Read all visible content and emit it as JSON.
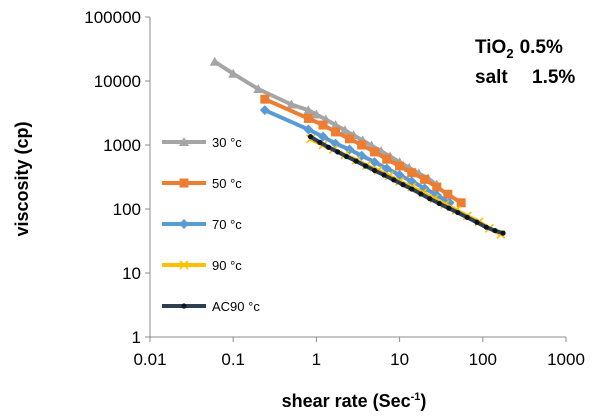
{
  "chart_data": {
    "type": "line",
    "xscale": "log",
    "yscale": "log",
    "xlim": [
      0.01,
      1000
    ],
    "ylim": [
      1,
      100000
    ],
    "xlabel": "shear rate (Sec",
    "xlabel_sup": "-1",
    "xlabel_end": ")",
    "ylabel": "viscosity (cp)",
    "x_ticks": [
      "0.01",
      "0.1",
      "1",
      "10",
      "100",
      "1000"
    ],
    "y_ticks": [
      "1",
      "10",
      "100",
      "1000",
      "10000",
      "100000"
    ],
    "grid": false,
    "legend_position": "left inside plot",
    "annotation": {
      "line1_main": "TiO",
      "line1_sub": "2",
      "line1_value": "0.5%",
      "line2_main": "salt",
      "line2_value": "1.5%"
    },
    "series": [
      {
        "name": "30 °c",
        "color": "#a5a5a5",
        "marker": "triangle",
        "x": [
          0.06,
          0.1,
          0.2,
          0.5,
          0.8,
          1.0,
          1.3,
          1.7,
          2.2,
          2.8,
          3.6,
          4.6,
          6,
          7.7,
          10,
          13,
          17,
          22,
          28
        ],
        "y": [
          20000,
          13000,
          7500,
          4300,
          3500,
          3000,
          2500,
          2050,
          1700,
          1420,
          1180,
          980,
          800,
          660,
          540,
          440,
          360,
          300,
          240
        ]
      },
      {
        "name": "50 °c",
        "color": "#ed7d31",
        "marker": "square",
        "x": [
          0.24,
          0.8,
          1.2,
          1.7,
          2.5,
          3.5,
          5,
          7,
          10,
          14,
          20,
          28,
          38,
          55
        ],
        "y": [
          5200,
          2600,
          2050,
          1600,
          1250,
          1000,
          780,
          600,
          470,
          370,
          290,
          220,
          170,
          125
        ]
      },
      {
        "name": "70 °c",
        "color": "#5b9bd5",
        "marker": "diamond",
        "x": [
          0.24,
          0.8,
          1.2,
          1.7,
          2.5,
          3.5,
          5,
          7,
          10,
          14,
          20,
          28,
          40
        ],
        "y": [
          3500,
          1750,
          1350,
          1050,
          850,
          680,
          540,
          430,
          340,
          270,
          210,
          165,
          125
        ]
      },
      {
        "name": "90 °c",
        "color": "#ffc000",
        "marker": "x",
        "x": [
          0.85,
          1.2,
          1.6,
          2.2,
          3,
          4,
          5.5,
          7.5,
          10,
          14,
          19,
          26,
          35,
          48,
          65,
          90,
          120,
          165
        ],
        "y": [
          1250,
          1000,
          850,
          700,
          580,
          480,
          400,
          330,
          270,
          220,
          180,
          145,
          118,
          96,
          78,
          63,
          50,
          40
        ]
      },
      {
        "name": "AC90 °c",
        "color": "#2e3f52",
        "marker": "dot",
        "x": [
          0.85,
          1.1,
          1.4,
          1.8,
          2.3,
          3,
          3.9,
          5,
          6.5,
          8.5,
          11,
          14,
          18,
          23,
          30,
          39,
          50,
          65,
          85,
          110,
          140,
          175
        ],
        "y": [
          1350,
          1100,
          920,
          780,
          660,
          560,
          470,
          400,
          340,
          285,
          240,
          205,
          172,
          145,
          122,
          103,
          88,
          74,
          62,
          52,
          46,
          42
        ]
      }
    ]
  }
}
